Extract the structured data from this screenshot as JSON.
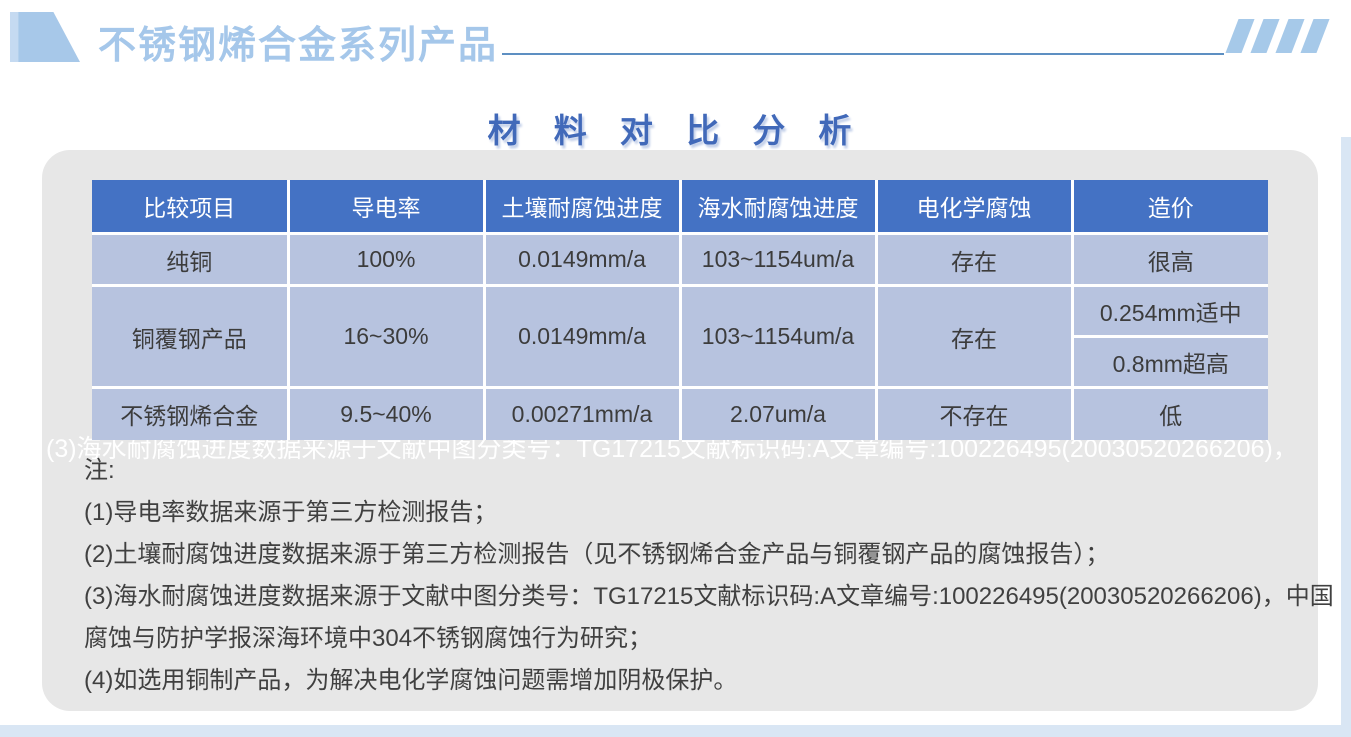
{
  "banner": {
    "brand_title": "不锈钢烯合金系列产品",
    "corner_ribbon_icon": "ribbon-decoration",
    "stripes_icon": "slanted-stripes-decoration"
  },
  "section": {
    "title": "材 料 对 比 分 析"
  },
  "ghost_line": "(3)海水耐腐蚀进度数据来源于文献中图分类号：TG17215文献标识码:A文章编号:100226495(20030520266206)，",
  "table": {
    "headers": [
      "比较项目",
      "导电率",
      "土壤耐腐蚀进度",
      "海水耐腐蚀进度",
      "电化学腐蚀",
      "造价"
    ],
    "rows": [
      {
        "cells": [
          "纯铜",
          "100%",
          "0.0149mm/a",
          "103~1154um/a",
          "存在",
          "很高"
        ]
      },
      {
        "cells": [
          "铜覆钢产品",
          "16~30%",
          "0.0149mm/a",
          "103~1154um/a",
          "存在",
          "0.254mm适中"
        ]
      },
      {
        "cells": [
          "0.8mm超高"
        ]
      },
      {
        "cells": [
          "不锈钢烯合金",
          "9.5~40%",
          "0.00271mm/a",
          "2.07um/a",
          "不存在",
          "低"
        ]
      }
    ]
  },
  "notes": {
    "intro": "注:",
    "item1": "(1)导电率数据来源于第三方检测报告；",
    "item2": "(2)土壤耐腐蚀进度数据来源于第三方检测报告（见不锈钢烯合金产品与铜覆钢产品的腐蚀报告）；",
    "item3_line1": "(3)海水耐腐蚀进度数据来源于文献中图分类号：TG17215文献标识码:A文章编号:100226495(20030520266206)，中国",
    "item3_line2": "腐蚀与防护学报深海环境中304不锈钢腐蚀行为研究；",
    "item4": "(4)如选用铜制产品，为解决电化学腐蚀问题需增加阴极保护。"
  },
  "colors": {
    "brand_title_blue": "#a5c7ea",
    "section_title_blue": "#4169b9",
    "table_header_bg": "#4472c4",
    "table_cell_bg": "#b7c3df",
    "card_gray": "#e7e7e7",
    "edge_accent_blue": "#d9e6f4",
    "underline_blue": "#5d8fc2"
  }
}
